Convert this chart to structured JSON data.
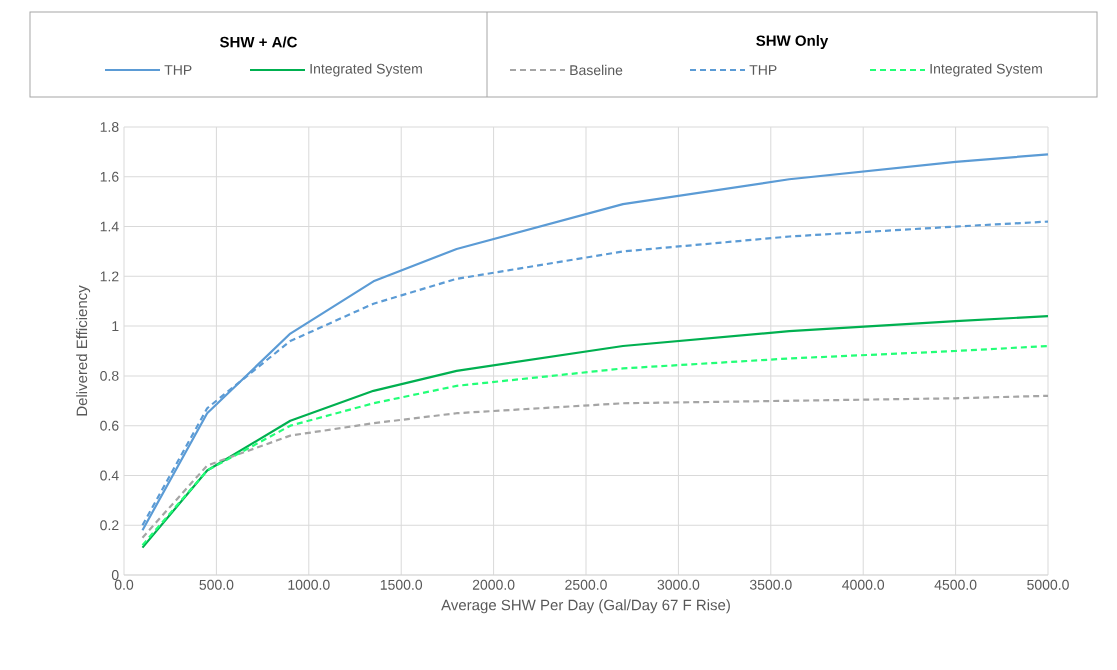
{
  "chart_data": {
    "type": "line",
    "xlabel": "Average SHW Per Day (Gal/Day 67 F Rise)",
    "ylabel": "Delivered  Efficiency",
    "annotations": [
      "SHW + A/C",
      "SHW Only"
    ],
    "x": [
      100,
      450,
      900,
      1350,
      1800,
      2700,
      3600,
      4500,
      5000
    ],
    "series": [
      {
        "name": "THP",
        "color": "#5b9bd5",
        "line_style": "solid",
        "values": [
          0.18,
          0.65,
          0.97,
          1.18,
          1.31,
          1.49,
          1.59,
          1.66,
          1.69
        ]
      },
      {
        "name": "Integrated System",
        "color": "#00b050",
        "line_style": "solid",
        "values": [
          0.11,
          0.42,
          0.62,
          0.74,
          0.82,
          0.92,
          0.98,
          1.02,
          1.04
        ]
      },
      {
        "name": "Baseline",
        "color": "#a5a5a5",
        "line_style": "dashed",
        "values": [
          0.15,
          0.44,
          0.56,
          0.61,
          0.65,
          0.69,
          0.7,
          0.71,
          0.72
        ]
      },
      {
        "name": "THP",
        "color": "#5b9bd5",
        "line_style": "dashed",
        "values": [
          0.2,
          0.67,
          0.94,
          1.09,
          1.19,
          1.3,
          1.36,
          1.4,
          1.42
        ]
      },
      {
        "name": "Integrated System",
        "color": "#22ff77",
        "line_style": "dashed",
        "values": [
          0.12,
          0.42,
          0.6,
          0.69,
          0.76,
          0.83,
          0.87,
          0.9,
          0.92
        ]
      }
    ],
    "xlim": [
      0,
      5000
    ],
    "xticks": [
      {
        "value": 0,
        "label": "0.0"
      },
      {
        "value": 500,
        "label": "500.0"
      },
      {
        "value": 1000,
        "label": "1000.0"
      },
      {
        "value": 1500,
        "label": "1500.0"
      },
      {
        "value": 2000,
        "label": "2000.0"
      },
      {
        "value": 2500,
        "label": "2500.0"
      },
      {
        "value": 3000,
        "label": "3000.0"
      },
      {
        "value": 3500,
        "label": "3500.0"
      },
      {
        "value": 4000,
        "label": "4000.0"
      },
      {
        "value": 4500,
        "label": "4500.0"
      },
      {
        "value": 5000,
        "label": "5000.0"
      }
    ],
    "ylim": [
      0,
      1.8
    ],
    "yticks": [
      0,
      0.2,
      0.4,
      0.6,
      0.8,
      1,
      1.2,
      1.4,
      1.6,
      1.8
    ],
    "grid": true,
    "legend": "top",
    "marker": "none"
  }
}
